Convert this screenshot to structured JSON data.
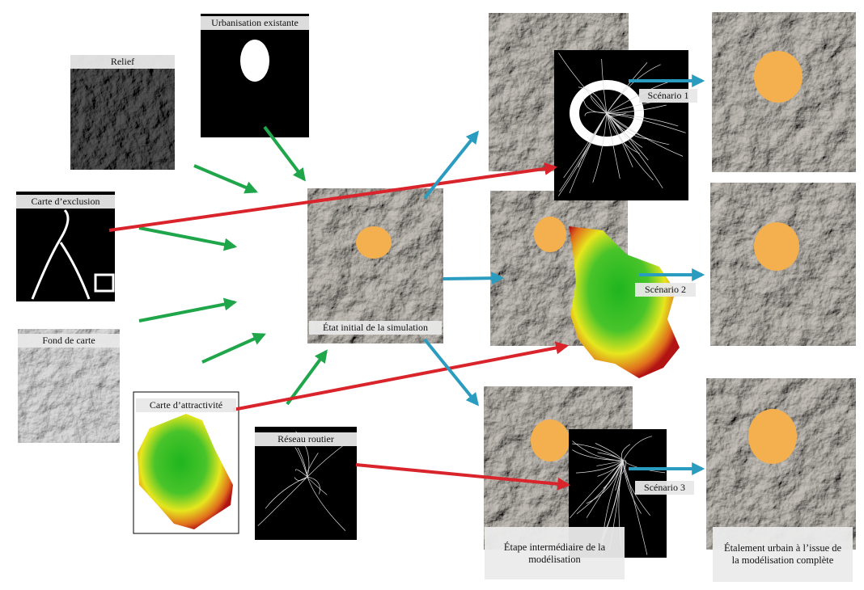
{
  "nodes": [
    {
      "label": "Relief"
    },
    {
      "label": "Urbanisation existante"
    },
    {
      "label": "Carte d’exclusion"
    },
    {
      "label": "Fond de carte"
    },
    {
      "label": "Carte d’attractivité"
    },
    {
      "label": "Réseau routier"
    },
    {
      "label": "État initial de la simulation"
    }
  ],
  "scenarios": [
    {
      "label": "Scénario 1"
    },
    {
      "label": "Scénario 2"
    },
    {
      "label": "Scénario 3"
    }
  ],
  "captions": [
    {
      "label": "Étape intermédiaire de la modélisation"
    },
    {
      "label": "Étalement urbain à l’issue de la modélisation complète"
    }
  ]
}
